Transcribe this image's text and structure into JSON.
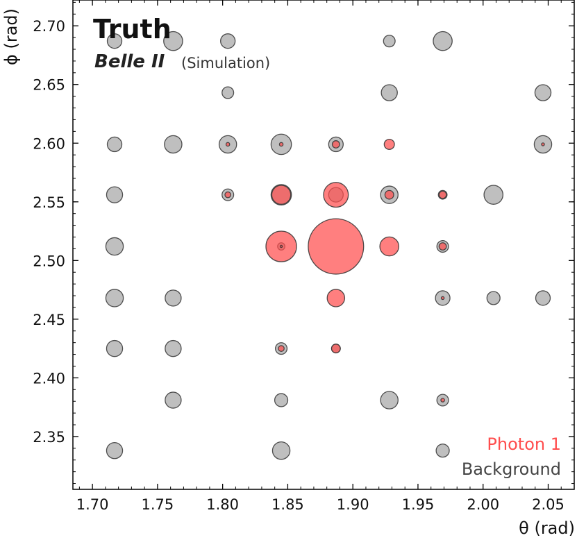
{
  "chart_data": {
    "type": "scatter",
    "title": "Truth",
    "experiment": "Belle II",
    "experiment_note": "(Simulation)",
    "xlabel": "θ (rad)",
    "ylabel": "ϕ (rad)",
    "xlim": [
      1.685,
      2.07
    ],
    "ylim": [
      2.305,
      2.722
    ],
    "xticks": [
      1.7,
      1.75,
      1.8,
      1.85,
      1.9,
      1.95,
      2.0,
      2.05
    ],
    "xtick_labels": [
      "1.70",
      "1.75",
      "1.80",
      "1.85",
      "1.90",
      "1.95",
      "2.00",
      "2.05"
    ],
    "yticks": [
      2.35,
      2.4,
      2.45,
      2.5,
      2.55,
      2.6,
      2.65,
      2.7
    ],
    "ytick_labels": [
      "2.35",
      "2.40",
      "2.45",
      "2.50",
      "2.55",
      "2.60",
      "2.65",
      "2.70"
    ],
    "legend_position": "bottom-right",
    "series": [
      {
        "name": "Background",
        "color": "#a9a9a9",
        "points": [
          {
            "x": 1.717,
            "y": 2.687,
            "r": 1.0
          },
          {
            "x": 1.762,
            "y": 2.687,
            "r": 1.3
          },
          {
            "x": 1.804,
            "y": 2.687,
            "r": 1.0
          },
          {
            "x": 1.928,
            "y": 2.687,
            "r": 0.8
          },
          {
            "x": 1.969,
            "y": 2.687,
            "r": 1.3
          },
          {
            "x": 1.804,
            "y": 2.643,
            "r": 0.8
          },
          {
            "x": 1.928,
            "y": 2.643,
            "r": 1.1
          },
          {
            "x": 2.046,
            "y": 2.643,
            "r": 1.1
          },
          {
            "x": 1.717,
            "y": 2.599,
            "r": 1.0
          },
          {
            "x": 1.762,
            "y": 2.599,
            "r": 1.2
          },
          {
            "x": 1.804,
            "y": 2.599,
            "r": 1.2
          },
          {
            "x": 1.845,
            "y": 2.599,
            "r": 1.4
          },
          {
            "x": 1.887,
            "y": 2.599,
            "r": 1.0
          },
          {
            "x": 2.046,
            "y": 2.599,
            "r": 1.2
          },
          {
            "x": 1.717,
            "y": 2.556,
            "r": 1.1
          },
          {
            "x": 1.804,
            "y": 2.556,
            "r": 0.8
          },
          {
            "x": 1.845,
            "y": 2.556,
            "r": 1.4
          },
          {
            "x": 1.887,
            "y": 2.556,
            "r": 1.0
          },
          {
            "x": 1.928,
            "y": 2.556,
            "r": 1.2
          },
          {
            "x": 1.969,
            "y": 2.556,
            "r": 0.6
          },
          {
            "x": 2.008,
            "y": 2.556,
            "r": 1.3
          },
          {
            "x": 1.717,
            "y": 2.512,
            "r": 1.2
          },
          {
            "x": 1.845,
            "y": 2.512,
            "r": 0.5
          },
          {
            "x": 1.969,
            "y": 2.512,
            "r": 0.8
          },
          {
            "x": 1.717,
            "y": 2.468,
            "r": 1.2
          },
          {
            "x": 1.762,
            "y": 2.468,
            "r": 1.1
          },
          {
            "x": 1.969,
            "y": 2.468,
            "r": 1.0
          },
          {
            "x": 2.008,
            "y": 2.468,
            "r": 0.9
          },
          {
            "x": 2.046,
            "y": 2.468,
            "r": 1.0
          },
          {
            "x": 1.717,
            "y": 2.425,
            "r": 1.1
          },
          {
            "x": 1.762,
            "y": 2.425,
            "r": 1.1
          },
          {
            "x": 1.845,
            "y": 2.425,
            "r": 0.8
          },
          {
            "x": 1.887,
            "y": 2.425,
            "r": 0.6
          },
          {
            "x": 1.762,
            "y": 2.381,
            "r": 1.1
          },
          {
            "x": 1.845,
            "y": 2.381,
            "r": 0.9
          },
          {
            "x": 1.928,
            "y": 2.381,
            "r": 1.2
          },
          {
            "x": 1.969,
            "y": 2.381,
            "r": 0.8
          },
          {
            "x": 1.717,
            "y": 2.338,
            "r": 1.1
          },
          {
            "x": 1.845,
            "y": 2.338,
            "r": 1.2
          },
          {
            "x": 1.969,
            "y": 2.338,
            "r": 0.9
          }
        ]
      },
      {
        "name": "Photon 1",
        "color": "#ff4d4d",
        "points": [
          {
            "x": 1.887,
            "y": 2.512,
            "r": 3.8
          },
          {
            "x": 1.845,
            "y": 2.512,
            "r": 2.1
          },
          {
            "x": 1.928,
            "y": 2.512,
            "r": 1.3
          },
          {
            "x": 1.887,
            "y": 2.556,
            "r": 1.7
          },
          {
            "x": 1.845,
            "y": 2.556,
            "r": 1.3
          },
          {
            "x": 1.887,
            "y": 2.468,
            "r": 1.2
          },
          {
            "x": 1.928,
            "y": 2.599,
            "r": 0.7
          },
          {
            "x": 1.928,
            "y": 2.556,
            "r": 0.6
          },
          {
            "x": 1.887,
            "y": 2.599,
            "r": 0.5
          },
          {
            "x": 1.969,
            "y": 2.556,
            "r": 0.5
          },
          {
            "x": 1.887,
            "y": 2.425,
            "r": 0.6
          },
          {
            "x": 1.969,
            "y": 2.512,
            "r": 0.5
          },
          {
            "x": 1.845,
            "y": 2.425,
            "r": 0.4
          },
          {
            "x": 1.804,
            "y": 2.556,
            "r": 0.4
          },
          {
            "x": 1.845,
            "y": 2.599,
            "r": 0.25
          },
          {
            "x": 1.804,
            "y": 2.599,
            "r": 0.25
          },
          {
            "x": 2.046,
            "y": 2.599,
            "r": 0.2
          },
          {
            "x": 1.969,
            "y": 2.468,
            "r": 0.2
          },
          {
            "x": 1.969,
            "y": 2.381,
            "r": 0.25
          },
          {
            "x": 1.845,
            "y": 2.512,
            "r": 0.15
          }
        ]
      }
    ]
  }
}
